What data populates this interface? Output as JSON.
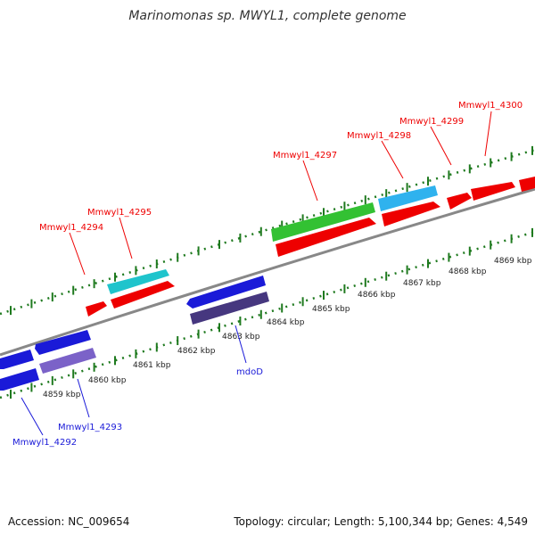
{
  "title": "Marinomonas sp. MWYL1, complete genome",
  "footer": {
    "accession": "Accession: NC_009654",
    "summary": "Topology: circular; Length: 5,100,344 bp; Genes: 4,549"
  },
  "colors": {
    "forward_gene": "#ee0000",
    "reverse_gene": "#1a1ad8",
    "tick": "#1f7a1f",
    "backbone": "#888888"
  },
  "ticks": [
    "4859 kbp",
    "4860 kbp",
    "4861 kbp",
    "4862 kbp",
    "4863 kbp",
    "4864 kbp",
    "4865 kbp",
    "4866 kbp",
    "4867 kbp",
    "4868 kbp",
    "4869 kbp"
  ],
  "forward_labels": [
    "Mmwyl1_4294",
    "Mmwyl1_4295",
    "Mmwyl1_4297",
    "Mmwyl1_4298",
    "Mmwyl1_4299",
    "Mmwyl1_4300"
  ],
  "reverse_labels": [
    "Mmwyl1_4292",
    "Mmwyl1_4293",
    "mdoD"
  ]
}
